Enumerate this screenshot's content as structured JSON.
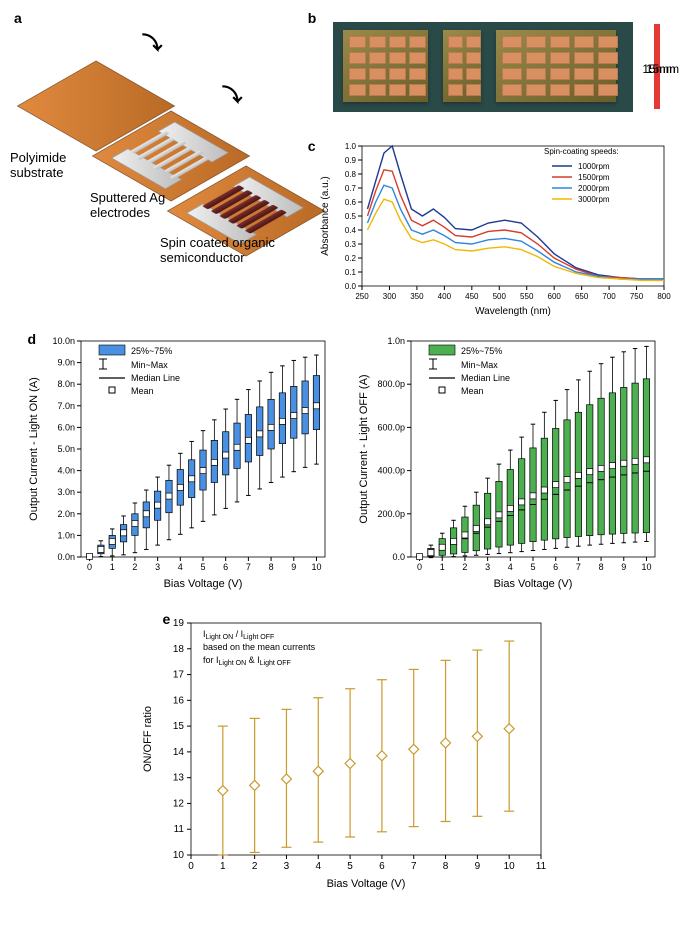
{
  "panel_a": {
    "label": "a",
    "caption_substrate": "Polyimide substrate",
    "caption_electrodes": "Sputtered Ag electrodes",
    "caption_osc": "Spin coated organic semiconductor",
    "colors": {
      "substrate": "#cf7a30",
      "metal": "#d9d9d9",
      "osc": "#5a1c1c"
    }
  },
  "panel_b": {
    "label": "b",
    "scale_text": "15mm",
    "bar_color": "#e53935",
    "bg_color": "#2a4a48",
    "sample_color": "#8a7a3c",
    "electrode_color": "#d89060"
  },
  "panel_c": {
    "label": "c",
    "xlabel": "Wavelength (nm)",
    "ylabel": "Absorbance (a.u.)",
    "legend_title": "Spin-coating speeds:",
    "xlim": [
      250,
      800
    ],
    "xtick_step": 50,
    "ylim": [
      0.0,
      1.0
    ],
    "ytick_step": 0.1,
    "series": [
      {
        "label": "1000rpm",
        "color": "#1f3a93",
        "x": [
          260,
          275,
          290,
          305,
          320,
          340,
          360,
          380,
          400,
          420,
          450,
          480,
          510,
          540,
          570,
          600,
          640,
          680,
          720,
          760,
          800
        ],
        "y": [
          0.55,
          0.75,
          0.95,
          1.0,
          0.8,
          0.55,
          0.5,
          0.55,
          0.49,
          0.41,
          0.4,
          0.45,
          0.47,
          0.45,
          0.35,
          0.23,
          0.13,
          0.08,
          0.06,
          0.05,
          0.05
        ]
      },
      {
        "label": "1500rpm",
        "color": "#d73c2c",
        "x": [
          260,
          275,
          290,
          305,
          320,
          340,
          360,
          380,
          400,
          420,
          450,
          480,
          510,
          540,
          570,
          600,
          640,
          680,
          720,
          760,
          800
        ],
        "y": [
          0.5,
          0.68,
          0.83,
          0.82,
          0.65,
          0.47,
          0.43,
          0.47,
          0.42,
          0.36,
          0.35,
          0.39,
          0.4,
          0.38,
          0.3,
          0.2,
          0.12,
          0.07,
          0.06,
          0.05,
          0.05
        ]
      },
      {
        "label": "2000rpm",
        "color": "#2e86de",
        "x": [
          260,
          275,
          290,
          305,
          320,
          340,
          360,
          380,
          400,
          420,
          450,
          480,
          510,
          540,
          570,
          600,
          640,
          680,
          720,
          760,
          800
        ],
        "y": [
          0.45,
          0.6,
          0.72,
          0.7,
          0.55,
          0.4,
          0.37,
          0.4,
          0.36,
          0.31,
          0.3,
          0.33,
          0.34,
          0.32,
          0.25,
          0.17,
          0.1,
          0.07,
          0.05,
          0.05,
          0.05
        ]
      },
      {
        "label": "3000rpm",
        "color": "#f2b705",
        "x": [
          260,
          275,
          290,
          305,
          320,
          340,
          360,
          380,
          400,
          420,
          450,
          480,
          510,
          540,
          570,
          600,
          640,
          680,
          720,
          760,
          800
        ],
        "y": [
          0.4,
          0.52,
          0.62,
          0.6,
          0.47,
          0.34,
          0.31,
          0.33,
          0.3,
          0.26,
          0.25,
          0.27,
          0.28,
          0.26,
          0.21,
          0.14,
          0.09,
          0.06,
          0.05,
          0.04,
          0.04
        ]
      }
    ]
  },
  "legend_box_stats": {
    "items": [
      {
        "kind": "box",
        "text": "25%~75%"
      },
      {
        "kind": "whisk",
        "text": "Min~Max"
      },
      {
        "kind": "line",
        "text": "Median Line"
      },
      {
        "kind": "mean",
        "text": "Mean"
      }
    ]
  },
  "panel_d_on": {
    "label": "d",
    "xlabel": "Bias Voltage (V)",
    "ylabel": "Output Current - Light ON (A)",
    "y_unit_suffix": "n",
    "fill": "#4a90e2",
    "stroke": "#000000",
    "xlim": [
      0,
      10
    ],
    "xtick_step": 1,
    "ylim": [
      0,
      10
    ],
    "ytick_step": 1,
    "x": [
      0,
      0.5,
      1,
      1.5,
      2,
      2.5,
      3,
      3.5,
      4,
      4.5,
      5,
      5.5,
      6,
      6.5,
      7,
      7.5,
      8,
      8.5,
      9,
      9.5,
      10
    ],
    "q1": [
      0.0,
      0.15,
      0.4,
      0.7,
      1.0,
      1.35,
      1.7,
      2.05,
      2.4,
      2.75,
      3.1,
      3.45,
      3.8,
      4.1,
      4.4,
      4.7,
      5.0,
      5.25,
      5.5,
      5.7,
      5.9
    ],
    "median": [
      0.03,
      0.35,
      0.7,
      1.1,
      1.55,
      1.95,
      2.4,
      2.8,
      3.2,
      3.6,
      4.0,
      4.35,
      4.7,
      5.05,
      5.35,
      5.65,
      5.95,
      6.25,
      6.5,
      6.75,
      7.0
    ],
    "q3": [
      0.06,
      0.55,
      1.0,
      1.5,
      2.0,
      2.55,
      3.05,
      3.55,
      4.05,
      4.5,
      4.95,
      5.4,
      5.8,
      6.2,
      6.6,
      6.95,
      7.3,
      7.6,
      7.9,
      8.15,
      8.4
    ],
    "min": [
      0.0,
      0.02,
      0.05,
      0.1,
      0.2,
      0.35,
      0.55,
      0.8,
      1.05,
      1.35,
      1.65,
      1.95,
      2.25,
      2.55,
      2.85,
      3.15,
      3.45,
      3.7,
      3.95,
      4.15,
      4.3
    ],
    "max": [
      0.1,
      0.75,
      1.3,
      1.9,
      2.5,
      3.1,
      3.7,
      4.25,
      4.8,
      5.35,
      5.85,
      6.35,
      6.85,
      7.3,
      7.75,
      8.15,
      8.55,
      8.85,
      9.1,
      9.25,
      9.35
    ],
    "mean": [
      0.03,
      0.35,
      0.72,
      1.12,
      1.55,
      2.0,
      2.4,
      2.82,
      3.22,
      3.62,
      4.0,
      4.38,
      4.72,
      5.08,
      5.4,
      5.7,
      6.0,
      6.28,
      6.55,
      6.78,
      7.0
    ]
  },
  "panel_d_off": {
    "xlabel": "Bias Voltage (V)",
    "ylabel": "Output Current - Light OFF (A)",
    "y_unit_suffix": "p",
    "fill": "#4caf50",
    "stroke": "#000000",
    "xlim": [
      0,
      10
    ],
    "xtick_step": 1,
    "ylim": [
      0,
      1000
    ],
    "ytick_step": 200,
    "tick_fmt": "p_suffix",
    "ytick_labels": [
      "0.0",
      "200.0p",
      "400.0p",
      "600.0p",
      "800.0p",
      "1.0n"
    ],
    "x": [
      0,
      0.5,
      1,
      1.5,
      2,
      2.5,
      3,
      3.5,
      4,
      4.5,
      5,
      5.5,
      6,
      6.5,
      7,
      7.5,
      8,
      8.5,
      9,
      9.5,
      10
    ],
    "q1": [
      0,
      3,
      8,
      14,
      21,
      29,
      37,
      46,
      55,
      63,
      71,
      78,
      84,
      90,
      95,
      99,
      103,
      106,
      109,
      111,
      113
    ],
    "median": [
      2,
      18,
      38,
      60,
      85,
      110,
      138,
      165,
      192,
      218,
      243,
      267,
      290,
      310,
      328,
      344,
      358,
      370,
      380,
      389,
      397
    ],
    "q3": [
      5,
      40,
      85,
      135,
      185,
      240,
      295,
      350,
      405,
      455,
      505,
      550,
      595,
      635,
      670,
      705,
      735,
      760,
      785,
      805,
      825
    ],
    "min": [
      -5,
      -3,
      0,
      2,
      5,
      8,
      12,
      16,
      20,
      25,
      30,
      35,
      40,
      45,
      50,
      55,
      59,
      63,
      66,
      69,
      72
    ],
    "max": [
      10,
      55,
      110,
      170,
      235,
      300,
      365,
      430,
      495,
      555,
      615,
      670,
      725,
      775,
      820,
      860,
      895,
      925,
      950,
      965,
      975
    ],
    "mean": [
      2,
      20,
      45,
      72,
      102,
      132,
      163,
      195,
      225,
      255,
      283,
      310,
      335,
      358,
      378,
      395,
      410,
      423,
      434,
      443,
      450
    ]
  },
  "panel_e": {
    "label": "e",
    "xlabel": "Bias Voltage (V)",
    "ylabel": "ON/OFF ratio",
    "note1": "I",
    "note1_sub": "Light ON",
    "note_slash": " / I",
    "note1b_sub": "Light OFF",
    "note2": "based on the mean currents",
    "note3": "for  I",
    "note3_sub": "Light ON",
    "note_amp": "  &  I",
    "note3b_sub": "Light OFF",
    "color": "#c99a2e",
    "xlim": [
      0,
      11
    ],
    "xtick_step": 1,
    "ylim": [
      10,
      19
    ],
    "ytick_step": 1,
    "x": [
      1,
      2,
      3,
      4,
      5,
      6,
      7,
      8,
      9,
      10
    ],
    "mean": [
      12.5,
      12.7,
      12.95,
      13.25,
      13.55,
      13.85,
      14.1,
      14.35,
      14.6,
      14.9
    ],
    "lo": [
      10.0,
      10.1,
      10.3,
      10.5,
      10.7,
      10.9,
      11.1,
      11.3,
      11.5,
      11.7
    ],
    "hi": [
      15.0,
      15.3,
      15.65,
      16.1,
      16.45,
      16.8,
      17.2,
      17.55,
      17.95,
      18.3
    ]
  }
}
